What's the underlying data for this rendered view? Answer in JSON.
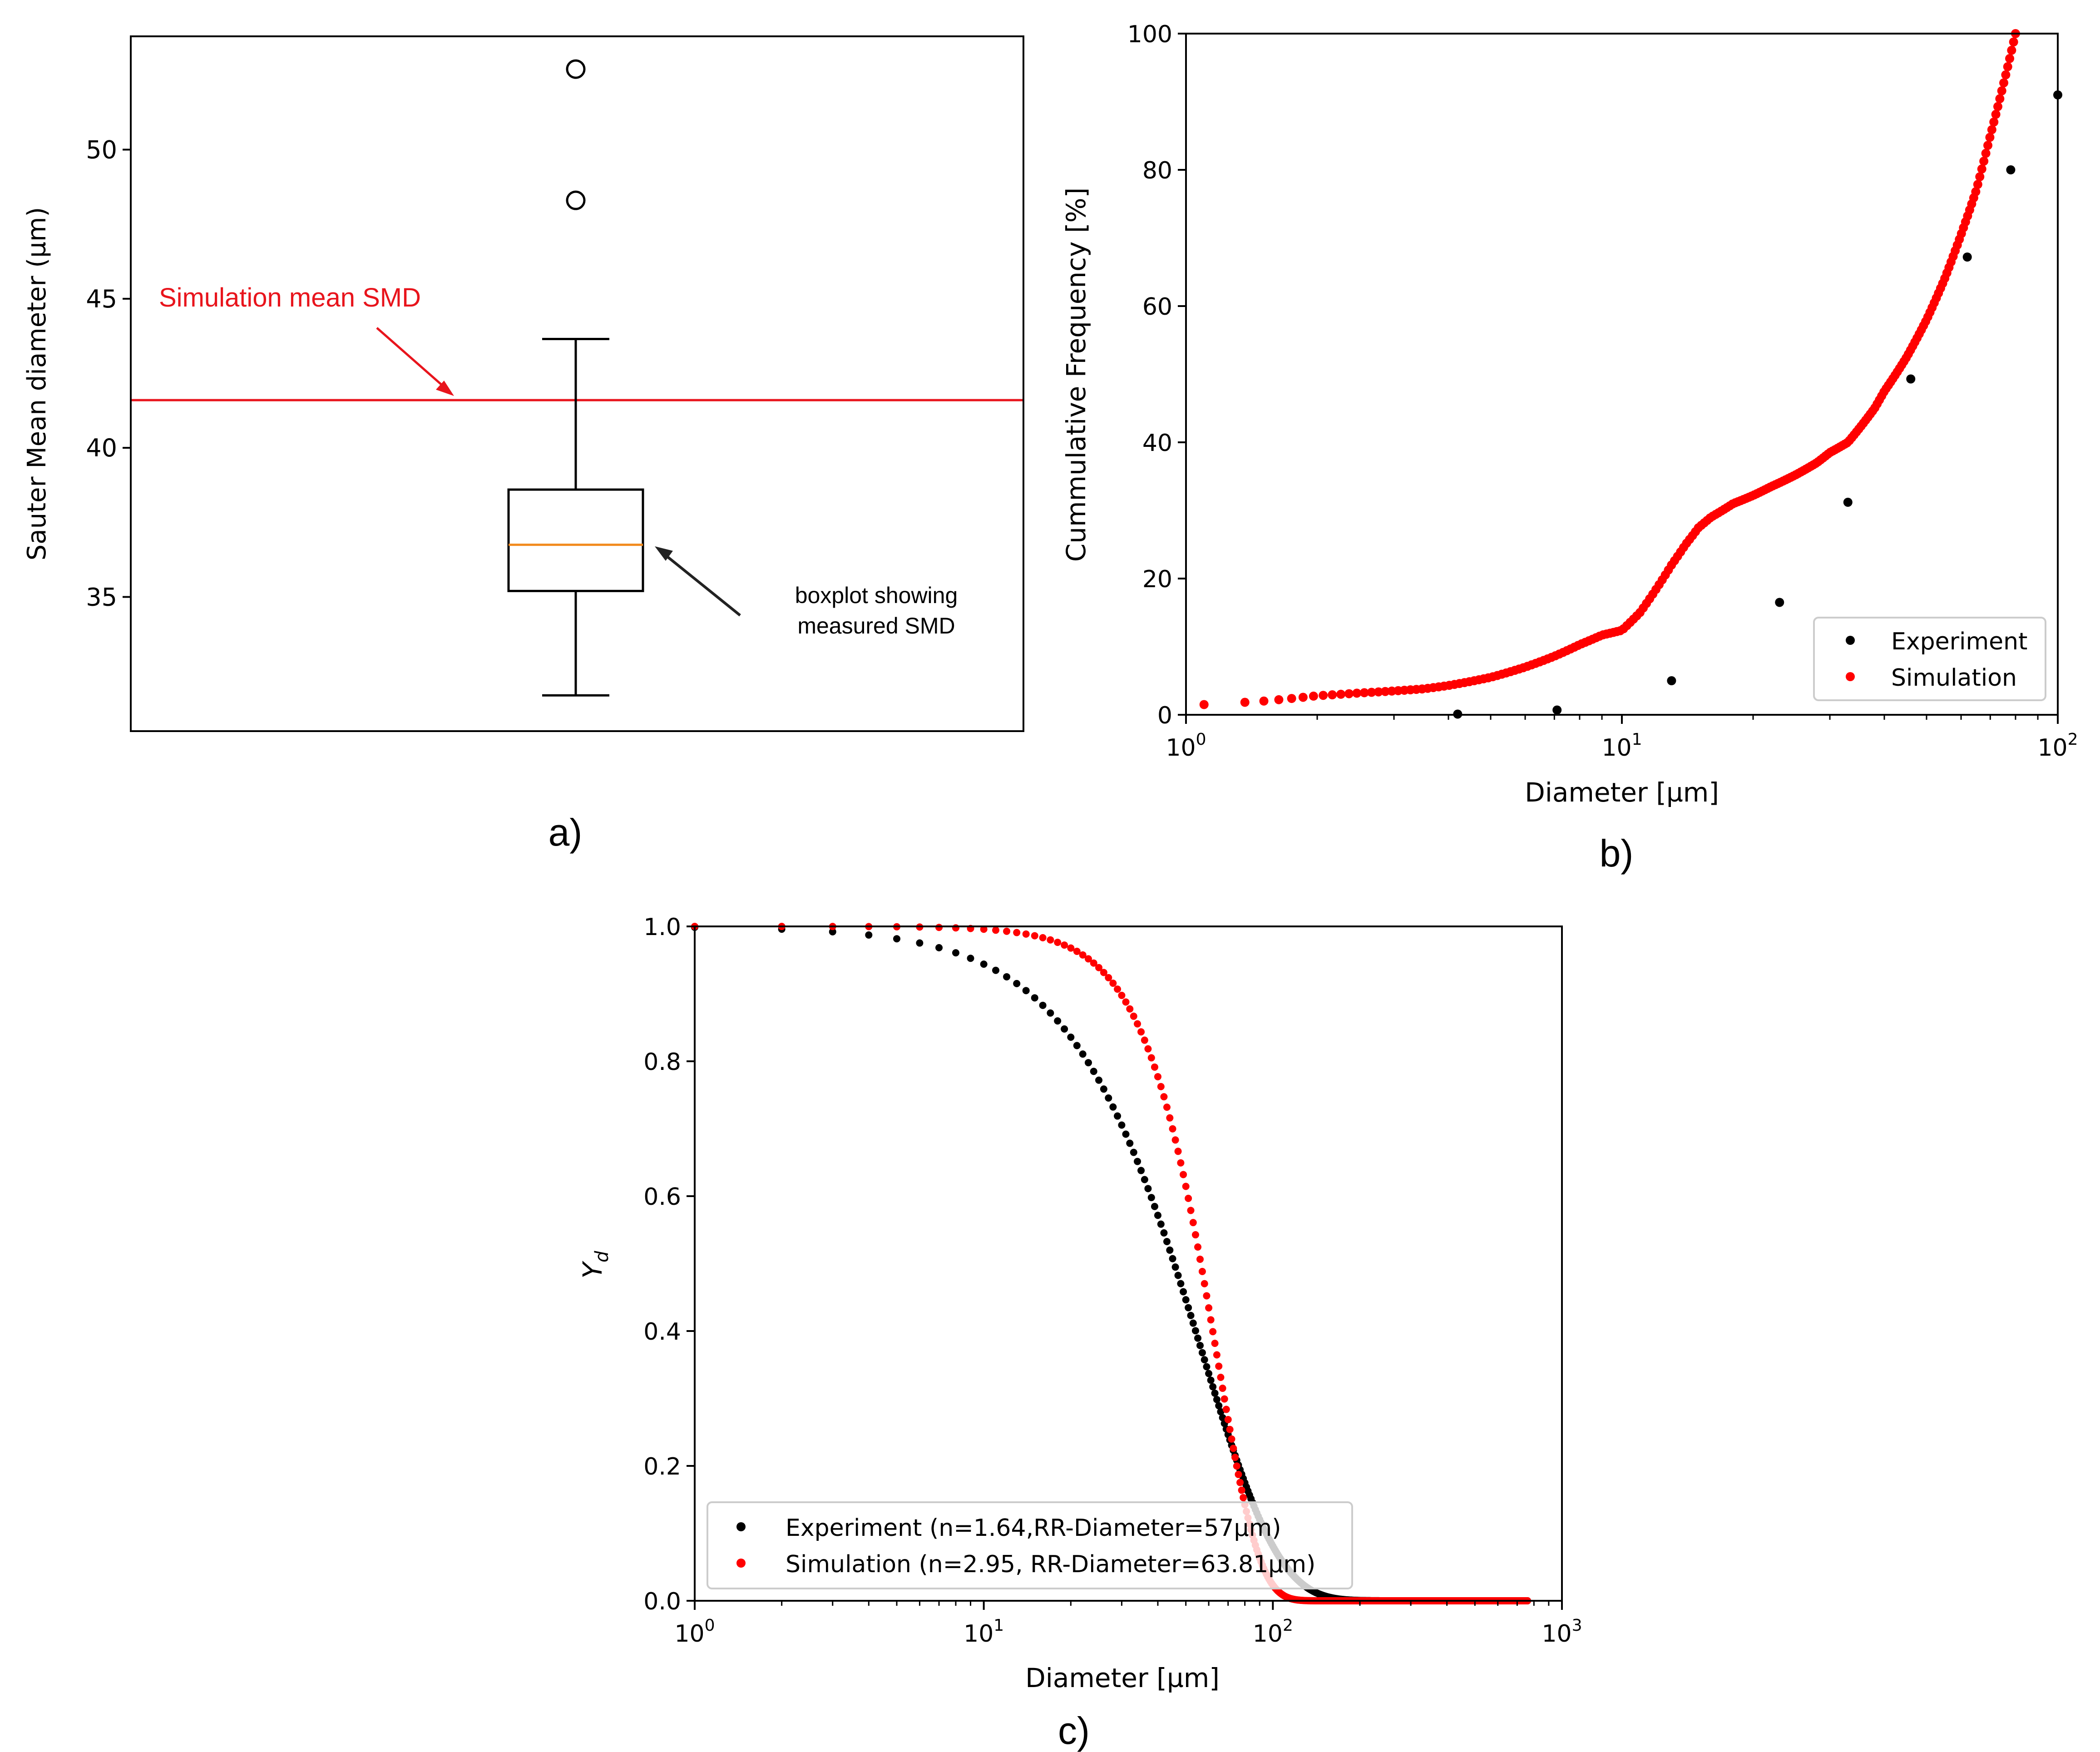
{
  "figure": {
    "panel_labels": [
      "a)",
      "b)",
      "c)"
    ]
  },
  "chart_data": [
    {
      "id": "a",
      "type": "box",
      "ylabel": "Sauter Mean diameter (µm)",
      "yticks": [
        35,
        40,
        45,
        50
      ],
      "ylim": [
        30.5,
        53.8
      ],
      "box": {
        "whisker_low": 31.7,
        "q1": 35.2,
        "median": 36.75,
        "q3": 38.6,
        "whisker_high": 43.65,
        "outliers": [
          48.3,
          52.7
        ]
      },
      "reference_line": {
        "value": 41.6,
        "label": "Simulation mean SMD",
        "color": "#e8141c"
      },
      "annotations": {
        "box_note": [
          "boxplot showing",
          "measured SMD"
        ]
      },
      "colors": {
        "median": "#f28b1e",
        "box": "#000000"
      }
    },
    {
      "id": "b",
      "type": "scatter",
      "xscale": "log",
      "xlim": [
        1,
        100
      ],
      "ylim": [
        0,
        100
      ],
      "xlabel": "Diameter [µm]",
      "ylabel": "Cummulative Frequency [%]",
      "xticks": [
        {
          "base": "10",
          "exp": "0"
        },
        {
          "base": "10",
          "exp": "1"
        },
        {
          "base": "10",
          "exp": "2"
        }
      ],
      "yticks": [
        0,
        20,
        40,
        60,
        80,
        100
      ],
      "legend": {
        "placement": "bottom-right",
        "entries": [
          "Experiment",
          "Simulation"
        ]
      },
      "series": [
        {
          "name": "Experiment",
          "color": "#000000",
          "x": [
            4.2,
            7.1,
            13.0,
            23.0,
            33.0,
            46.0,
            62.0,
            78.0,
            100.0
          ],
          "y": [
            0.1,
            0.7,
            5.0,
            16.5,
            31.2,
            49.3,
            67.2,
            80.0,
            91.0
          ]
        },
        {
          "name": "Simulation",
          "color": "#ff0000",
          "curve": {
            "x": [
              1.1,
              1.5,
              2,
              2.5,
              3,
              3.5,
              4,
              5,
              6,
              7,
              8,
              9,
              10,
              11,
              12,
              13,
              14,
              15,
              16,
              18,
              20,
              22,
              25,
              28,
              30,
              33,
              35,
              38,
              40,
              45,
              50,
              55,
              60,
              65,
              70,
              75,
              80
            ],
            "y": [
              1.5,
              2.0,
              2.8,
              3.2,
              3.5,
              3.8,
              4.3,
              5.5,
              7.0,
              8.6,
              10.3,
              11.7,
              12.4,
              15.0,
              18.5,
              22.0,
              25.0,
              27.5,
              29.0,
              31.0,
              32.2,
              33.5,
              35.2,
              37.0,
              38.5,
              40.0,
              42.0,
              45.0,
              47.5,
              52.5,
              58.0,
              64.0,
              70.5,
              77.0,
              85.0,
              92.5,
              100.0
            ]
          },
          "n_points": 230
        }
      ]
    },
    {
      "id": "c",
      "type": "scatter",
      "xscale": "log",
      "xlim": [
        1,
        1000
      ],
      "ylim": [
        0,
        1
      ],
      "xlabel": "Diameter [µm]",
      "ylabel": "Y",
      "ylabel_sub": "d",
      "xticks": [
        {
          "base": "10",
          "exp": "0"
        },
        {
          "base": "10",
          "exp": "1"
        },
        {
          "base": "10",
          "exp": "2"
        },
        {
          "base": "10",
          "exp": "3"
        }
      ],
      "yticks": [
        "0.0",
        "0.2",
        "0.4",
        "0.6",
        "0.8",
        "1.0"
      ],
      "legend": {
        "placement": "lower-left",
        "entries": [
          "Experiment (n=1.64,RR-Diameter=57µm)",
          "Simulation (n=2.95, RR-Diameter=63.81µm)"
        ]
      },
      "series": [
        {
          "name": "Experiment",
          "model": "rosin-rammler",
          "n": 1.64,
          "rr_diameter": 57,
          "color": "#000000",
          "x_start": 1,
          "x_end": 760
        },
        {
          "name": "Simulation",
          "model": "rosin-rammler",
          "n": 2.95,
          "rr_diameter": 63.81,
          "color": "#ff0000",
          "x_start": 1,
          "x_end": 760
        }
      ]
    }
  ]
}
